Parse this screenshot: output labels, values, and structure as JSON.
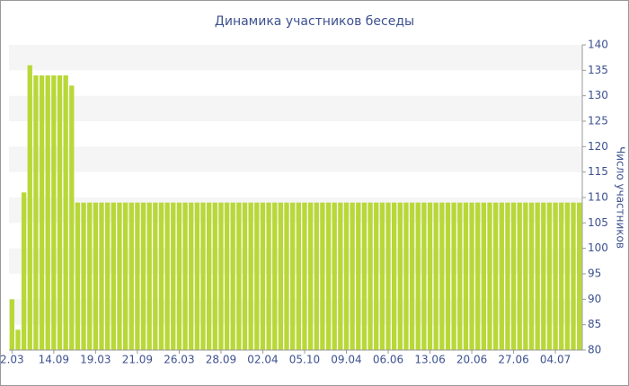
{
  "chart_data": {
    "type": "bar",
    "title": "Динамика участников беседы",
    "y_label": "Число участников",
    "categories": [
      "2.03",
      null,
      null,
      null,
      null,
      null,
      null,
      "14.09",
      null,
      null,
      null,
      null,
      null,
      null,
      "19.03",
      null,
      null,
      null,
      null,
      null,
      null,
      "21.09",
      null,
      null,
      null,
      null,
      null,
      null,
      "26.03",
      null,
      null,
      null,
      null,
      null,
      null,
      "28.09",
      null,
      null,
      null,
      null,
      null,
      null,
      "02.04",
      null,
      null,
      null,
      null,
      null,
      null,
      "05.10",
      null,
      null,
      null,
      null,
      null,
      null,
      "09.04",
      null,
      null,
      null,
      null,
      null,
      null,
      "06.06",
      null,
      null,
      null,
      null,
      null,
      null,
      "13.06",
      null,
      null,
      null,
      null,
      null,
      null,
      "20.06",
      null,
      null,
      null,
      null,
      null,
      null,
      "27.06",
      null,
      null,
      null,
      null,
      null,
      null,
      "04.07",
      null,
      null,
      null,
      null
    ],
    "values": [
      90,
      84,
      111,
      136,
      134,
      134,
      134,
      134,
      134,
      134,
      132,
      109,
      109,
      109,
      109,
      109,
      109,
      109,
      109,
      109,
      109,
      109,
      109,
      109,
      109,
      109,
      109,
      109,
      109,
      109,
      109,
      109,
      109,
      109,
      109,
      109,
      109,
      109,
      109,
      109,
      109,
      109,
      109,
      109,
      109,
      109,
      109,
      109,
      109,
      109,
      109,
      109,
      109,
      109,
      109,
      109,
      109,
      109,
      109,
      109,
      109,
      109,
      109,
      109,
      109,
      109,
      109,
      109,
      109,
      109,
      109,
      109,
      109,
      109,
      109,
      109,
      109,
      109,
      109,
      109,
      109,
      109,
      109,
      109,
      109,
      109,
      109,
      109,
      109,
      109,
      109,
      109,
      109,
      109,
      109,
      109
    ],
    "color": "#b8d838",
    "ylim": [
      80,
      140
    ],
    "yticks": [
      80,
      85,
      90,
      95,
      100,
      105,
      110,
      115,
      120,
      125,
      130,
      135,
      140
    ],
    "grid": true
  }
}
